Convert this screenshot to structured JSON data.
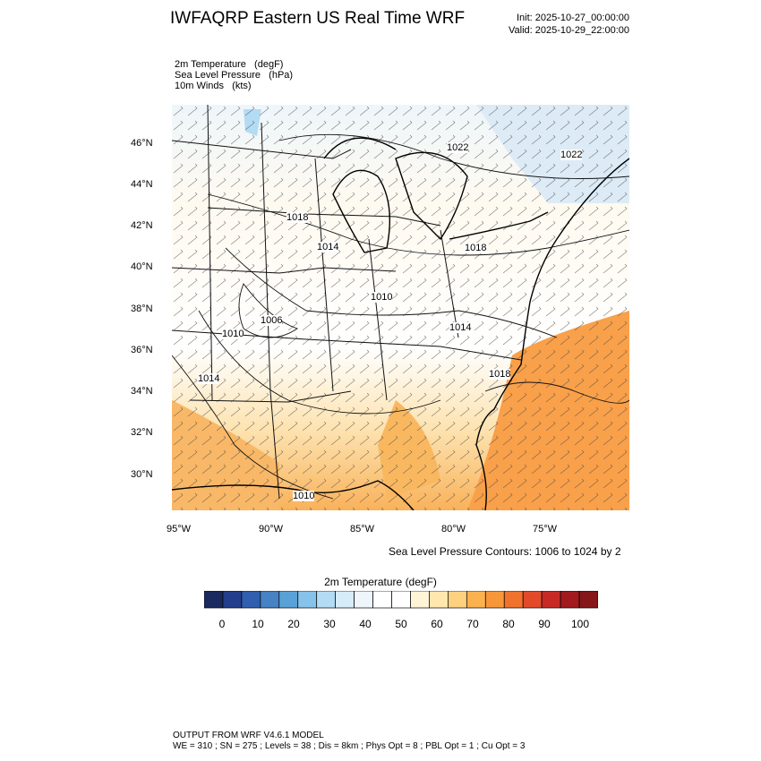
{
  "title": "IWFAQRP Eastern US Real Time WRF",
  "init": "Init: 2025-10-27_00:00:00",
  "valid": "Valid: 2025-10-29_22:00:00",
  "fields": [
    "2m Temperature   (degF)",
    "Sea Level Pressure   (hPa)",
    "10m Winds   (kts)"
  ],
  "map": {
    "lat_labels": [
      "46°N",
      "44°N",
      "42°N",
      "40°N",
      "38°N",
      "36°N",
      "34°N",
      "32°N",
      "30°N"
    ],
    "lon_labels": [
      "95°W",
      "90°W",
      "85°W",
      "80°W",
      "75°W"
    ],
    "contour_labels": [
      "1022",
      "1022",
      "1018",
      "1014",
      "1018",
      "1010",
      "1006",
      "1014",
      "1010",
      "1014",
      "1018",
      "1010"
    ]
  },
  "contour_note": "Sea Level Pressure Contours: 1006 to 1024 by 2",
  "colorbar": {
    "title": "2m Temperature  (degF)",
    "colors": [
      "#1b2a5e",
      "#233f8c",
      "#2f5fae",
      "#4682c4",
      "#5aa1d8",
      "#86c2ea",
      "#b3dcf4",
      "#d6ecf8",
      "#eef6fb",
      "#ffffff",
      "#ffffff",
      "#fff4d8",
      "#ffe7ad",
      "#fdd17f",
      "#fbb24e",
      "#f8963a",
      "#f1722c",
      "#e24a2a",
      "#c72a25",
      "#a31a1e",
      "#861619"
    ],
    "labels": [
      "0",
      "10",
      "20",
      "30",
      "40",
      "50",
      "60",
      "70",
      "80",
      "90",
      "100"
    ]
  },
  "footer": [
    "OUTPUT FROM WRF V4.6.1 MODEL",
    "WE = 310 ; SN = 275 ; Levels = 38 ; Dis = 8km ; Phys Opt = 8 ; PBL Opt = 1 ; Cu Opt = 3"
  ]
}
